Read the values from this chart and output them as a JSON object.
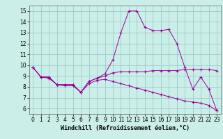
{
  "xlabel": "Windchill (Refroidissement éolien,°C)",
  "background_color": "#cceee8",
  "grid_color": "#99cccc",
  "line_color": "#990099",
  "xlim": [
    -0.5,
    23.5
  ],
  "ylim": [
    5.5,
    15.5
  ],
  "xticks": [
    0,
    1,
    2,
    3,
    4,
    5,
    6,
    7,
    8,
    9,
    10,
    11,
    12,
    13,
    14,
    15,
    16,
    17,
    18,
    19,
    20,
    21,
    22,
    23
  ],
  "yticks": [
    6,
    7,
    8,
    9,
    10,
    11,
    12,
    13,
    14,
    15
  ],
  "series": [
    {
      "x": [
        0,
        1,
        2,
        3,
        4,
        5,
        6,
        7,
        8,
        9,
        10,
        11,
        12,
        13,
        14,
        15,
        16,
        17,
        18,
        19,
        20,
        21,
        22,
        23
      ],
      "y": [
        9.8,
        8.9,
        8.9,
        8.2,
        8.2,
        8.2,
        7.5,
        8.5,
        8.8,
        9.2,
        10.5,
        13.0,
        15.0,
        15.0,
        13.5,
        13.2,
        13.2,
        13.3,
        12.0,
        9.8,
        7.8,
        8.9,
        7.8,
        5.8
      ]
    },
    {
      "x": [
        0,
        1,
        2,
        3,
        4,
        5,
        6,
        7,
        8,
        9,
        10,
        11,
        12,
        13,
        14,
        15,
        16,
        17,
        18,
        19,
        20,
        21,
        22,
        23
      ],
      "y": [
        9.8,
        8.9,
        8.9,
        8.2,
        8.2,
        8.2,
        7.5,
        8.5,
        8.8,
        9.0,
        9.3,
        9.4,
        9.4,
        9.4,
        9.4,
        9.5,
        9.5,
        9.5,
        9.5,
        9.6,
        9.6,
        9.6,
        9.6,
        9.5
      ]
    },
    {
      "x": [
        0,
        1,
        2,
        3,
        4,
        5,
        6,
        7,
        8,
        9,
        10,
        11,
        12,
        13,
        14,
        15,
        16,
        17,
        18,
        19,
        20,
        21,
        22,
        23
      ],
      "y": [
        9.8,
        8.9,
        8.8,
        8.2,
        8.1,
        8.1,
        7.5,
        8.3,
        8.6,
        8.7,
        8.5,
        8.3,
        8.1,
        7.9,
        7.7,
        7.5,
        7.3,
        7.1,
        6.9,
        6.7,
        6.6,
        6.5,
        6.3,
        5.8
      ]
    }
  ],
  "xlabel_fontsize": 6,
  "tick_fontsize": 5.5
}
